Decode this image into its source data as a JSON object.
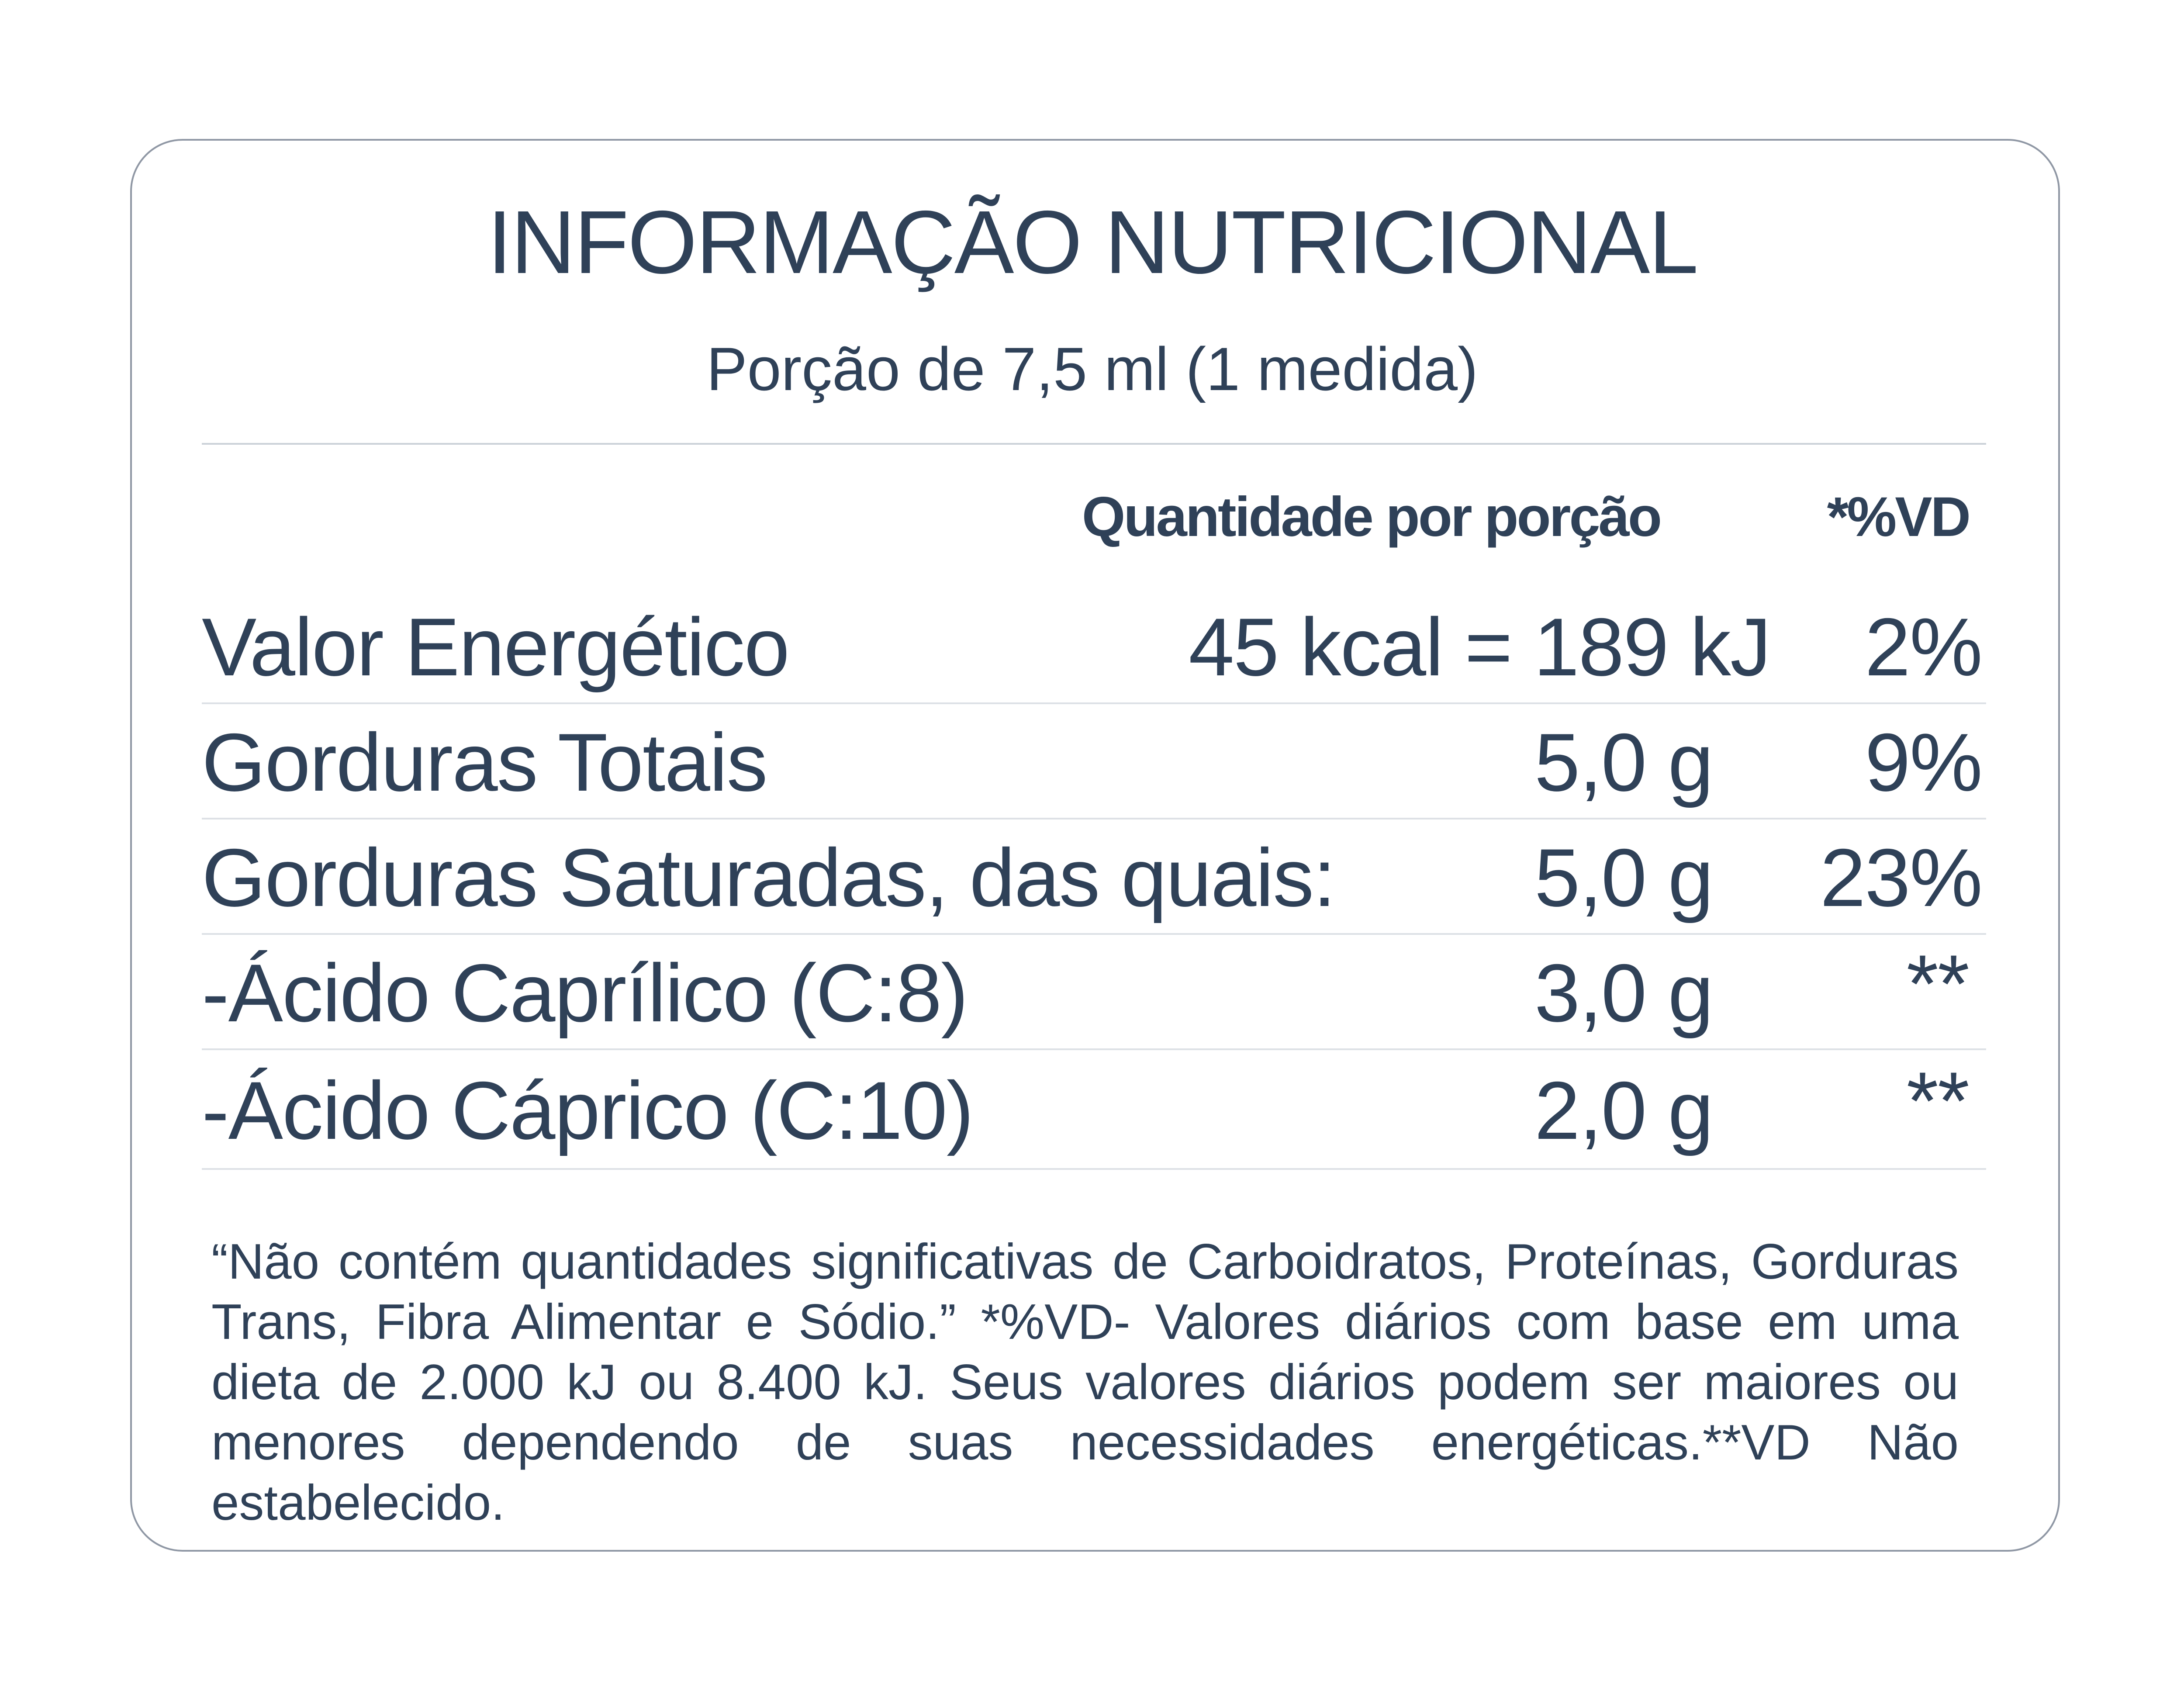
{
  "label": {
    "title": "INFORMAÇÃO NUTRICIONAL",
    "serving": "Porção de 7,5 ml (1 medida)",
    "headers": {
      "quantity": "Quantidade por porção",
      "daily_value": "*%VD"
    },
    "rows": [
      {
        "name": "Valor Energético",
        "quantity": "45 kcal = 189 kJ",
        "daily_value": "2%"
      },
      {
        "name": "Gorduras Totais",
        "quantity": "5,0 g",
        "daily_value": "9%"
      },
      {
        "name": "Gorduras Saturadas, das quais:",
        "quantity": "5,0 g",
        "daily_value": "23%"
      },
      {
        "name": "-Ácido Caprílico (C:8)",
        "quantity": "3,0 g",
        "daily_value": "**"
      },
      {
        "name": "-Ácido Cáprico (C:10)",
        "quantity": "2,0 g",
        "daily_value": "**"
      }
    ],
    "footnote": "“Não contém quantidades significativas de Carboidratos, Proteínas, Gorduras Trans, Fibra Alimentar e Sódio.” *%VD- Valores diários com base em uma dieta de 2.000 kJ ou 8.400 kJ. Seus valores diários podem ser maiores ou menores dependendo de suas necessidades energéticas.**VD Não estabelecido."
  },
  "colors": {
    "text": "#2f4158",
    "border": "#8f97a4",
    "divider": "#dde1e6"
  }
}
